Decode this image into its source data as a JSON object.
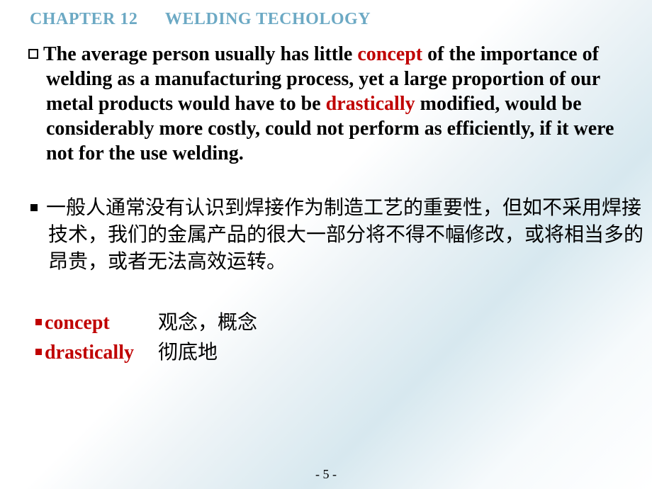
{
  "colors": {
    "title": "#6ca9c4",
    "highlight": "#c00000",
    "text": "#000000",
    "bg_stops": [
      "#ffffff",
      "#eef4f7",
      "#d7e8ef",
      "#f6fafc"
    ]
  },
  "typography": {
    "title_fontsize": 24,
    "body_fontsize": 28,
    "footer_fontsize": 18,
    "title_weight": "bold",
    "body_en_weight": "bold",
    "body_cn_weight": "normal",
    "font_serif": "Times New Roman",
    "font_cjk": "SimHei"
  },
  "chapter_title": "CHAPTER 12      WELDING TECHOLOGY",
  "para_en": {
    "seg1": "The average person usually has little ",
    "hl1": "concept",
    "seg2": " of the importance of welding as a manufacturing process, yet a large proportion of our metal products would have to be ",
    "hl2": "drastically",
    "seg3": " modified, would be considerably more costly, could not perform as efficiently, if it were not for the use welding."
  },
  "para_cn": "一般人通常没有认识到焊接作为制造工艺的重要性，但如不采用焊接技术，我们的金属产品的很大一部分将不得不幅修改，或将相当多的昂贵，或者无法高效运转。",
  "vocab": [
    {
      "term": "concept",
      "def": "观念，概念"
    },
    {
      "term": "drastically",
      "def": "彻底地"
    }
  ],
  "page_number": "- 5 -"
}
